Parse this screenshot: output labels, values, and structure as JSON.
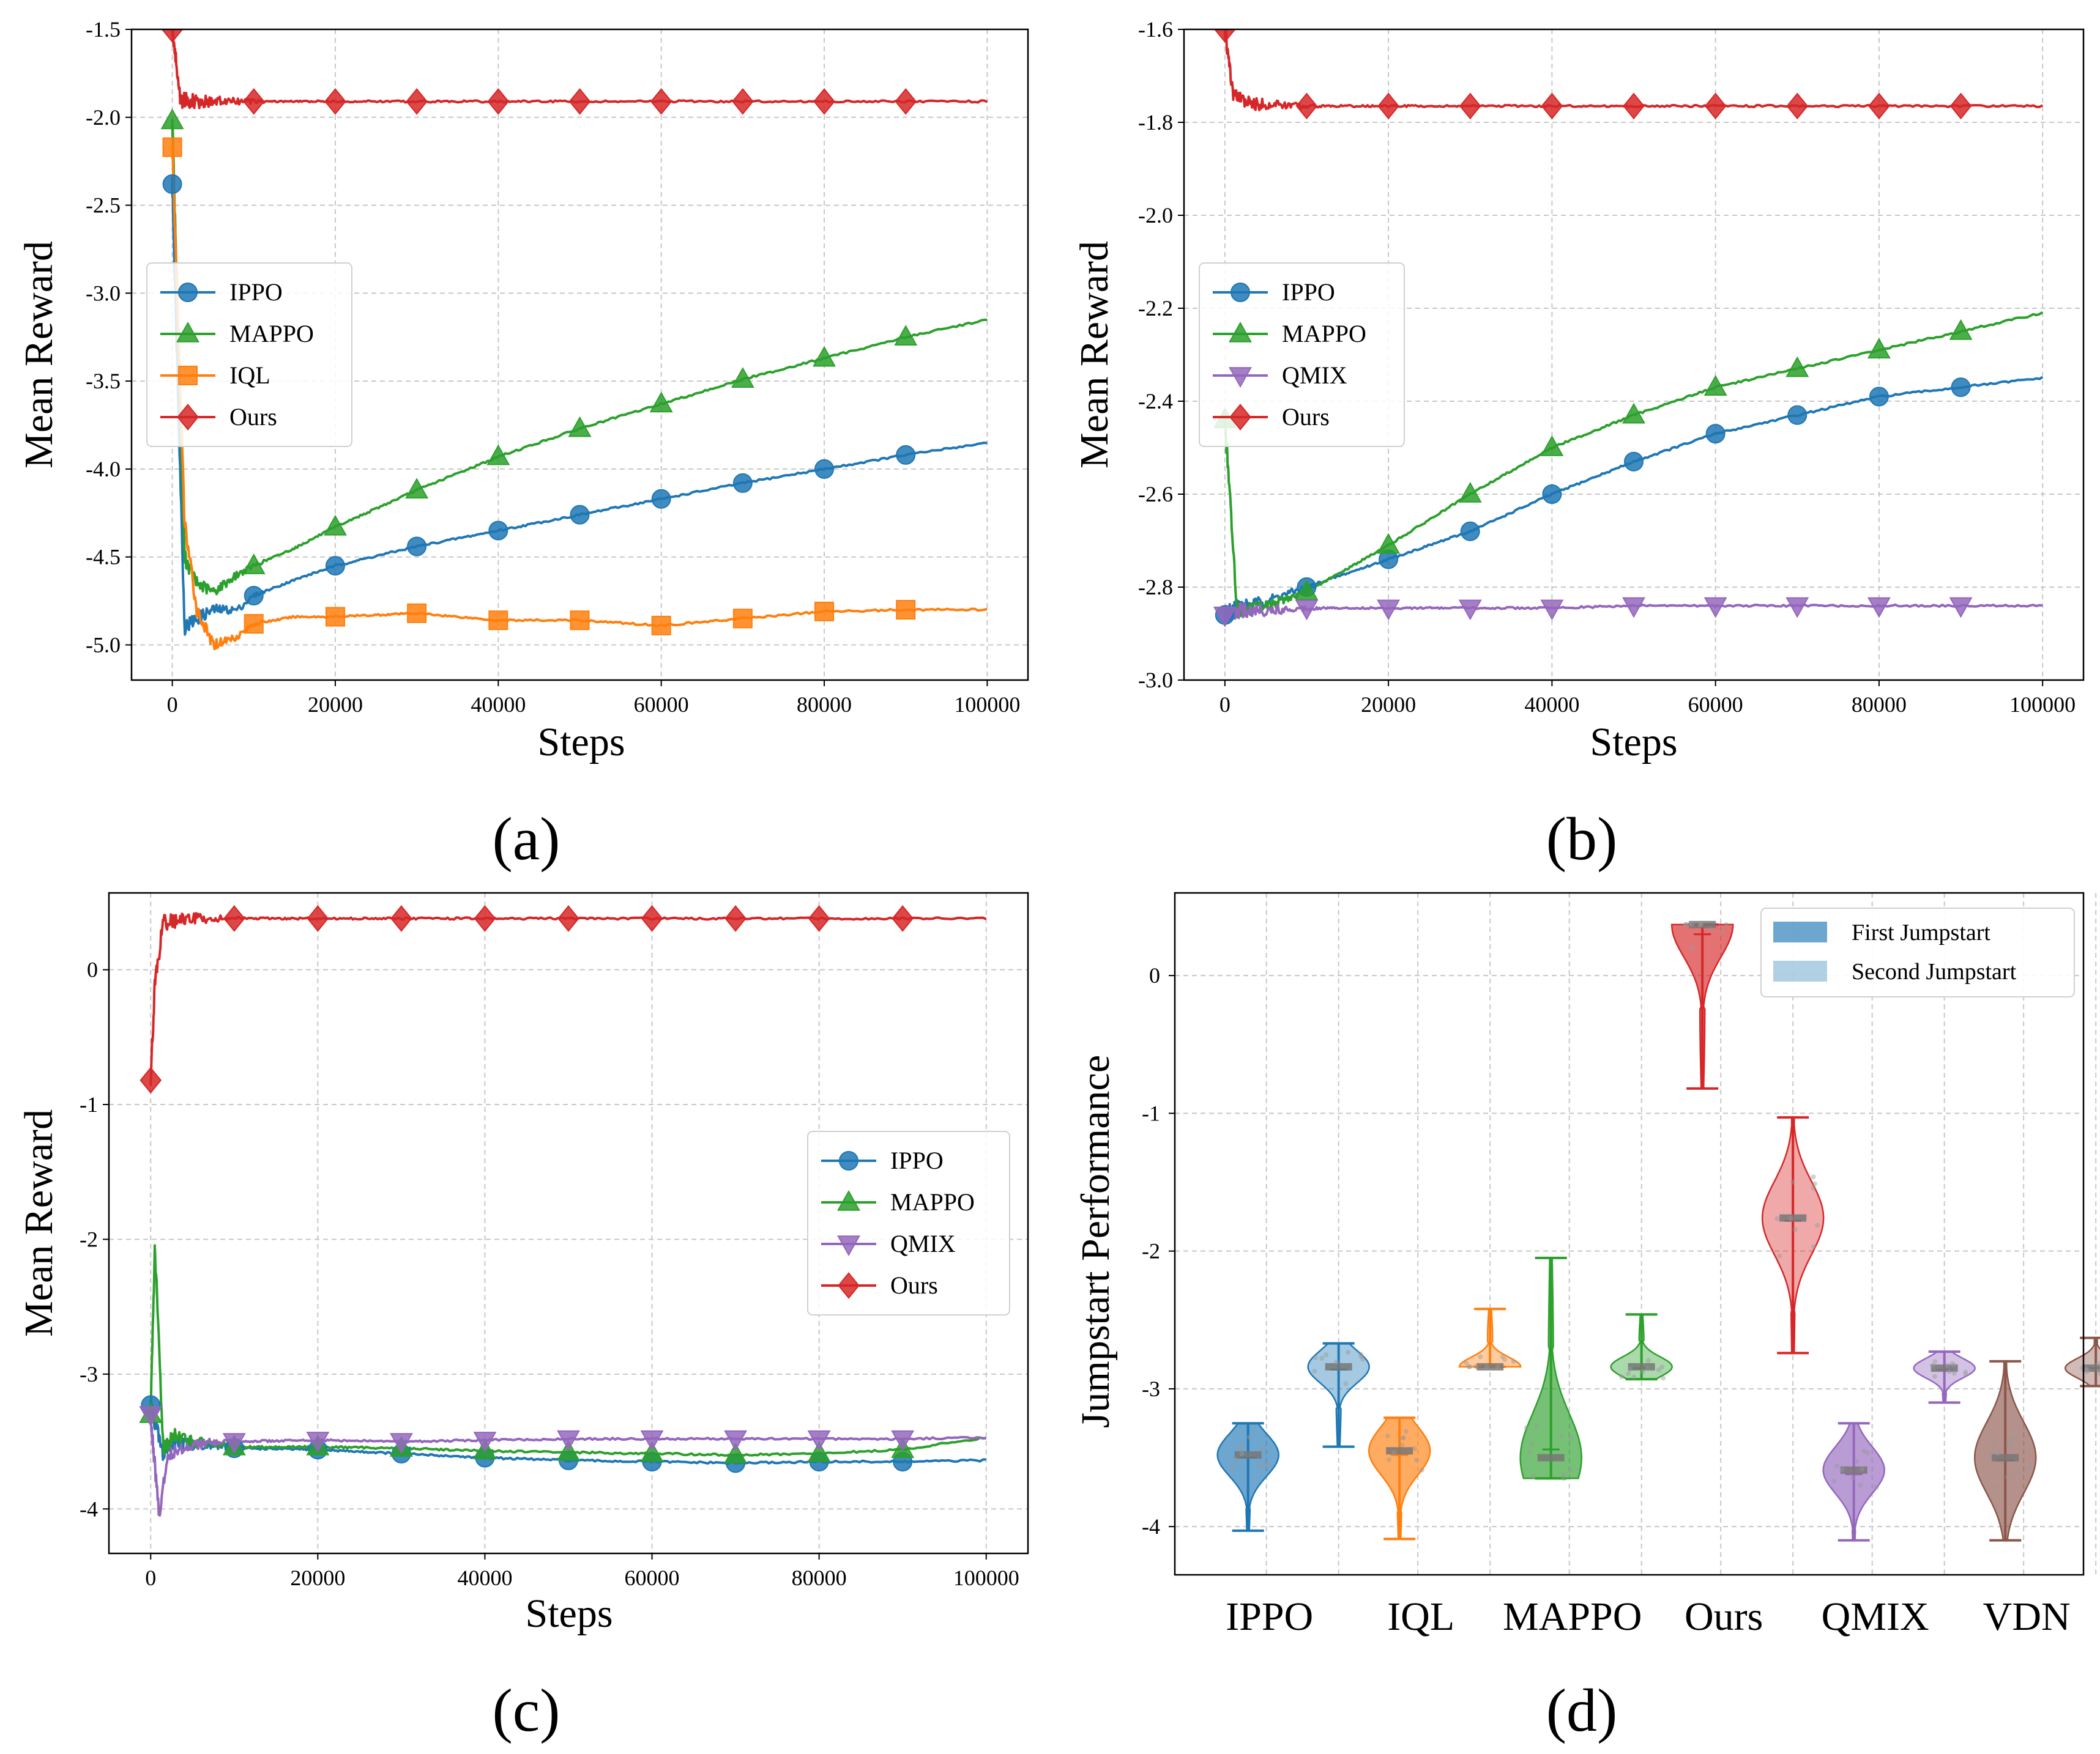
{
  "colors": {
    "IPPO": "#1f77b4",
    "MAPPO": "#2ca02c",
    "IQL": "#ff7f0e",
    "QMIX": "#9467bd",
    "Ours": "#d62728",
    "VDN": "#8c564b"
  },
  "chart_data": [
    {
      "type": "line",
      "panel": "(a)",
      "xlabel": "Steps",
      "ylabel": "Mean Reward",
      "xlim": [
        -5000,
        105000
      ],
      "ylim": [
        -5.2,
        -1.5
      ],
      "xticks": [
        0,
        20000,
        40000,
        60000,
        80000,
        100000
      ],
      "xtick_labels": [
        "0",
        "20000",
        "40000",
        "60000",
        "80000",
        "100000"
      ],
      "yticks": [
        -5.0,
        -4.5,
        -4.0,
        -3.5,
        -3.0,
        -2.5,
        -2.0,
        -1.5
      ],
      "ytick_labels": [
        "-5.0",
        "-4.5",
        "-4.0",
        "-3.5",
        "-3.0",
        "-2.5",
        "-2.0",
        "-1.5"
      ],
      "legend_position": "center-left",
      "series": [
        {
          "name": "IPPO",
          "marker": "circle",
          "x": [
            0,
            1500,
            3000,
            5000,
            8000,
            10000,
            15000,
            20000,
            30000,
            40000,
            50000,
            60000,
            70000,
            80000,
            90000,
            100000
          ],
          "y": [
            -2.38,
            -4.9,
            -4.85,
            -4.8,
            -4.8,
            -4.72,
            -4.63,
            -4.55,
            -4.44,
            -4.35,
            -4.26,
            -4.17,
            -4.08,
            -4.0,
            -3.92,
            -3.85
          ]
        },
        {
          "name": "MAPPO",
          "marker": "triangle",
          "x": [
            0,
            1500,
            3000,
            5000,
            8000,
            10000,
            15000,
            20000,
            30000,
            40000,
            50000,
            60000,
            70000,
            80000,
            90000,
            100000
          ],
          "y": [
            -2.02,
            -4.5,
            -4.65,
            -4.7,
            -4.6,
            -4.55,
            -4.45,
            -4.33,
            -4.12,
            -3.93,
            -3.77,
            -3.63,
            -3.49,
            -3.37,
            -3.25,
            -3.15
          ]
        },
        {
          "name": "IQL",
          "marker": "square",
          "x": [
            0,
            1500,
            3000,
            5000,
            8000,
            10000,
            15000,
            20000,
            30000,
            40000,
            50000,
            60000,
            70000,
            80000,
            90000,
            100000
          ],
          "y": [
            -2.17,
            -4.3,
            -4.8,
            -5.0,
            -4.95,
            -4.88,
            -4.84,
            -4.84,
            -4.82,
            -4.86,
            -4.86,
            -4.89,
            -4.85,
            -4.81,
            -4.8,
            -4.8
          ]
        },
        {
          "name": "Ours",
          "marker": "diamond",
          "x": [
            0,
            1000,
            3000,
            10000,
            20000,
            30000,
            40000,
            50000,
            60000,
            70000,
            80000,
            90000,
            100000
          ],
          "y": [
            -1.5,
            -1.9,
            -1.91,
            -1.91,
            -1.91,
            -1.91,
            -1.91,
            -1.91,
            -1.91,
            -1.91,
            -1.91,
            -1.91,
            -1.91
          ]
        }
      ]
    },
    {
      "type": "line",
      "panel": "(b)",
      "xlabel": "Steps",
      "ylabel": "Mean Reward",
      "xlim": [
        -5000,
        105000
      ],
      "ylim": [
        -3.0,
        -1.6
      ],
      "xticks": [
        0,
        20000,
        40000,
        60000,
        80000,
        100000
      ],
      "xtick_labels": [
        "0",
        "20000",
        "40000",
        "60000",
        "80000",
        "100000"
      ],
      "yticks": [
        -3.0,
        -2.8,
        -2.6,
        -2.4,
        -2.2,
        -2.0,
        -1.8,
        -1.6
      ],
      "ytick_labels": [
        "-3.0",
        "-2.8",
        "-2.6",
        "-2.4",
        "-2.2",
        "-2.0",
        "-1.8",
        "-1.6"
      ],
      "legend_position": "center-left",
      "series": [
        {
          "name": "IPPO",
          "marker": "circle",
          "x": [
            0,
            1500,
            3000,
            5000,
            10000,
            20000,
            30000,
            40000,
            50000,
            60000,
            70000,
            80000,
            90000,
            100000
          ],
          "y": [
            -2.86,
            -2.84,
            -2.84,
            -2.83,
            -2.8,
            -2.74,
            -2.68,
            -2.6,
            -2.53,
            -2.47,
            -2.43,
            -2.39,
            -2.37,
            -2.35
          ]
        },
        {
          "name": "MAPPO",
          "marker": "triangle",
          "x": [
            0,
            1500,
            3000,
            5000,
            10000,
            20000,
            30000,
            40000,
            50000,
            60000,
            70000,
            80000,
            90000,
            100000
          ],
          "y": [
            -2.44,
            -2.85,
            -2.85,
            -2.84,
            -2.81,
            -2.71,
            -2.6,
            -2.5,
            -2.43,
            -2.37,
            -2.33,
            -2.29,
            -2.25,
            -2.21
          ]
        },
        {
          "name": "QMIX",
          "marker": "triangle-down",
          "x": [
            0,
            1500,
            5000,
            10000,
            20000,
            30000,
            40000,
            50000,
            60000,
            70000,
            80000,
            90000,
            100000
          ],
          "y": [
            -2.86,
            -2.85,
            -2.85,
            -2.845,
            -2.845,
            -2.845,
            -2.845,
            -2.84,
            -2.84,
            -2.84,
            -2.84,
            -2.84,
            -2.84
          ]
        },
        {
          "name": "Ours",
          "marker": "diamond",
          "x": [
            0,
            1000,
            3000,
            10000,
            20000,
            30000,
            40000,
            50000,
            60000,
            70000,
            80000,
            90000,
            100000
          ],
          "y": [
            -1.6,
            -1.74,
            -1.76,
            -1.765,
            -1.765,
            -1.765,
            -1.765,
            -1.765,
            -1.765,
            -1.765,
            -1.765,
            -1.765,
            -1.765
          ]
        }
      ]
    },
    {
      "type": "line",
      "panel": "(c)",
      "xlabel": "Steps",
      "ylabel": "Mean Reward",
      "xlim": [
        -5000,
        105000
      ],
      "ylim": [
        -4.33,
        0.57
      ],
      "xticks": [
        0,
        20000,
        40000,
        60000,
        80000,
        100000
      ],
      "xtick_labels": [
        "0",
        "20000",
        "40000",
        "60000",
        "80000",
        "100000"
      ],
      "yticks": [
        -4,
        -3,
        -2,
        -1,
        0
      ],
      "ytick_labels": [
        "-4",
        "-3",
        "-2",
        "-1",
        "0"
      ],
      "legend_position": "center-right",
      "series": [
        {
          "name": "IPPO",
          "marker": "circle",
          "x": [
            0,
            1500,
            3000,
            5000,
            10000,
            20000,
            30000,
            40000,
            50000,
            60000,
            70000,
            80000,
            90000,
            100000
          ],
          "y": [
            -3.23,
            -3.6,
            -3.5,
            -3.52,
            -3.55,
            -3.56,
            -3.59,
            -3.62,
            -3.64,
            -3.65,
            -3.66,
            -3.65,
            -3.65,
            -3.64
          ]
        },
        {
          "name": "MAPPO",
          "marker": "triangle",
          "x": [
            0,
            500,
            1500,
            3000,
            5000,
            10000,
            20000,
            30000,
            40000,
            50000,
            60000,
            70000,
            80000,
            90000,
            100000
          ],
          "y": [
            -3.3,
            -2.05,
            -3.55,
            -3.45,
            -3.5,
            -3.54,
            -3.54,
            -3.55,
            -3.57,
            -3.58,
            -3.59,
            -3.6,
            -3.59,
            -3.56,
            -3.47
          ]
        },
        {
          "name": "QMIX",
          "marker": "triangle-down",
          "x": [
            0,
            1000,
            2000,
            5000,
            10000,
            20000,
            30000,
            40000,
            50000,
            60000,
            70000,
            80000,
            90000,
            100000
          ],
          "y": [
            -3.3,
            -4.05,
            -3.6,
            -3.52,
            -3.5,
            -3.49,
            -3.5,
            -3.49,
            -3.48,
            -3.48,
            -3.48,
            -3.48,
            -3.48,
            -3.47
          ]
        },
        {
          "name": "Ours",
          "marker": "diamond",
          "x": [
            0,
            500,
            1500,
            5000,
            10000,
            20000,
            30000,
            40000,
            50000,
            60000,
            70000,
            80000,
            90000,
            100000
          ],
          "y": [
            -0.82,
            -0.1,
            0.35,
            0.38,
            0.38,
            0.38,
            0.38,
            0.38,
            0.38,
            0.38,
            0.38,
            0.38,
            0.38,
            0.38
          ]
        }
      ]
    },
    {
      "type": "violin",
      "panel": "(d)",
      "ylabel": "Jumpstart Performance",
      "ylim": [
        -4.35,
        0.6
      ],
      "yticks": [
        -4,
        -3,
        -2,
        -1,
        0
      ],
      "ytick_labels": [
        "-4",
        "-3",
        "-2",
        "-1",
        "0"
      ],
      "categories": [
        "IPPO",
        "IQL",
        "MAPPO",
        "Ours",
        "QMIX",
        "VDN"
      ],
      "legend_position": "top-right",
      "legend": [
        "First Jumpstart",
        "Second Jumpstart"
      ],
      "first_jumpstart": [
        {
          "min": -4.03,
          "max": -3.25,
          "median": -3.48,
          "mean": -3.5
        },
        {
          "min": -4.09,
          "max": -3.21,
          "median": -3.45,
          "mean": -3.48
        },
        {
          "min": -3.65,
          "max": -2.05,
          "median": -3.5,
          "mean": -3.44
        },
        {
          "min": -0.82,
          "max": 0.37,
          "median": 0.37,
          "mean": 0.3
        },
        {
          "min": -4.1,
          "max": -3.25,
          "median": -3.59,
          "mean": -3.62
        },
        {
          "min": -4.1,
          "max": -2.8,
          "median": -3.5,
          "mean": -3.52
        }
      ],
      "second_jumpstart": [
        {
          "min": -3.42,
          "max": -2.67,
          "median": -2.84,
          "mean": -2.86
        },
        {
          "min": -2.84,
          "max": -2.42,
          "median": -2.84,
          "mean": -2.83
        },
        {
          "min": -2.93,
          "max": -2.46,
          "median": -2.84,
          "mean": -2.85
        },
        {
          "min": -2.74,
          "max": -1.03,
          "median": -1.76,
          "mean": -1.78
        },
        {
          "min": -3.1,
          "max": -2.73,
          "median": -2.85,
          "mean": -2.86
        },
        {
          "min": -2.98,
          "max": -2.63,
          "median": -2.85,
          "mean": -2.85
        }
      ]
    }
  ],
  "panel_labels": [
    "(a)",
    "(b)",
    "(c)",
    "(d)"
  ]
}
